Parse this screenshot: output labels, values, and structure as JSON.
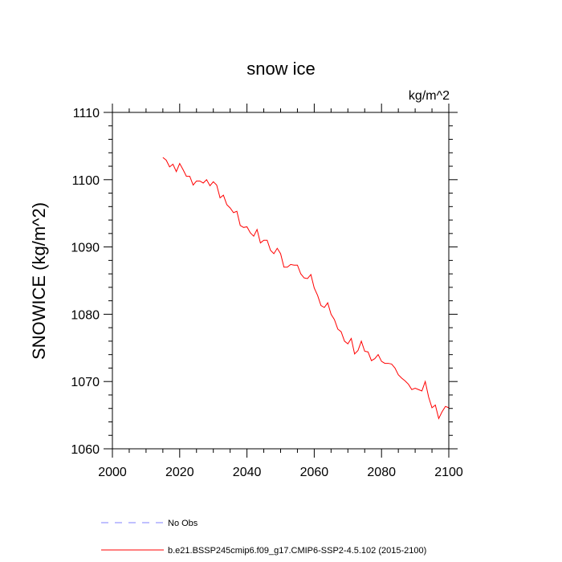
{
  "chart_data": {
    "type": "line",
    "title": "snow ice",
    "units": "kg/m^2",
    "ylabel": "SNOWICE  (kg/m^2)",
    "xlabel": "",
    "xlim": [
      2000,
      2100
    ],
    "ylim": [
      1060,
      1110
    ],
    "xticks": [
      2000,
      2020,
      2040,
      2060,
      2080,
      2100
    ],
    "yticks": [
      1060,
      1070,
      1080,
      1090,
      1100,
      1110
    ],
    "grid": false,
    "legend_position": "bottom-left",
    "series": [
      {
        "name": "b.e21.BSSP245cmip6.f09_g17.CMIP6-SSP2-4.5.102 (2015-2100)",
        "color": "#ff0000",
        "style": "solid",
        "x": [
          2015,
          2016,
          2017,
          2018,
          2019,
          2020,
          2021,
          2022,
          2023,
          2024,
          2025,
          2026,
          2027,
          2028,
          2029,
          2030,
          2031,
          2032,
          2033,
          2034,
          2035,
          2036,
          2037,
          2038,
          2039,
          2040,
          2041,
          2042,
          2043,
          2044,
          2045,
          2046,
          2047,
          2048,
          2049,
          2050,
          2051,
          2052,
          2053,
          2054,
          2055,
          2056,
          2057,
          2058,
          2059,
          2060,
          2061,
          2062,
          2063,
          2064,
          2065,
          2066,
          2067,
          2068,
          2069,
          2070,
          2071,
          2072,
          2073,
          2074,
          2075,
          2076,
          2077,
          2078,
          2079,
          2080,
          2081,
          2082,
          2083,
          2084,
          2085,
          2086,
          2087,
          2088,
          2089,
          2090,
          2091,
          2092,
          2093,
          2094,
          2095,
          2096,
          2097,
          2098,
          2099,
          2100
        ],
        "y": [
          1103.3,
          1102.9,
          1101.9,
          1102.3,
          1101.2,
          1102.4,
          1101.5,
          1100.5,
          1100.5,
          1099.2,
          1099.8,
          1099.8,
          1099.5,
          1100.0,
          1099.1,
          1099.7,
          1099.2,
          1097.3,
          1097.7,
          1096.3,
          1095.8,
          1095.1,
          1095.3,
          1093.2,
          1092.9,
          1093.0,
          1092.1,
          1091.6,
          1092.6,
          1090.6,
          1091.0,
          1091.0,
          1089.5,
          1089.0,
          1089.8,
          1089.0,
          1087.0,
          1087.0,
          1087.4,
          1087.3,
          1087.3,
          1086.0,
          1085.4,
          1085.3,
          1085.9,
          1083.9,
          1082.8,
          1081.3,
          1081.0,
          1081.7,
          1080.0,
          1079.2,
          1077.8,
          1077.4,
          1076.0,
          1075.6,
          1076.4,
          1074.1,
          1074.6,
          1076.0,
          1074.5,
          1074.4,
          1073.1,
          1073.4,
          1074.0,
          1073.0,
          1072.7,
          1072.7,
          1072.6,
          1072.0,
          1071.0,
          1070.5,
          1070.1,
          1069.6,
          1068.8,
          1069.0,
          1068.8,
          1068.6,
          1070.0,
          1067.7,
          1066.1,
          1066.5,
          1064.5,
          1065.5,
          1066.3,
          1066.1
        ]
      },
      {
        "name": "No Obs",
        "color": "#8080ff",
        "style": "dashed",
        "x": [],
        "y": []
      }
    ]
  }
}
